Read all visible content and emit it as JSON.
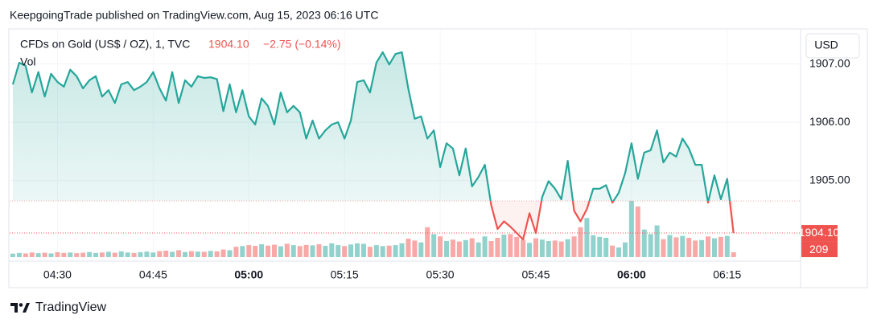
{
  "header": {
    "title": "KeepgoingTrade published on TradingView.com, Aug 15, 2023 06:16 UTC"
  },
  "footer": {
    "brand": "TradingView"
  },
  "chart_data": {
    "type": "line",
    "change": "−2.75 (−0.14%)",
    "currency": "USD",
    "x": [
      263,
      264,
      265,
      266,
      267,
      268,
      269,
      270,
      271,
      272,
      273,
      274,
      275,
      276,
      277,
      278,
      279,
      280,
      281,
      282,
      283,
      284,
      285,
      286,
      287,
      288,
      289,
      290,
      291,
      292,
      293,
      294,
      295,
      296,
      297,
      298,
      299,
      300,
      301,
      302,
      303,
      304,
      305,
      306,
      307,
      308,
      309,
      310,
      311,
      312,
      313,
      314,
      315,
      316,
      317,
      318,
      319,
      320,
      321,
      322,
      323,
      324,
      325,
      326,
      327,
      328,
      329,
      330,
      331,
      332,
      333,
      334,
      335,
      336,
      337,
      338,
      339,
      340,
      341,
      342,
      343,
      344,
      345,
      346,
      347,
      348,
      349,
      350,
      351,
      352,
      353,
      354,
      355,
      356,
      357,
      358,
      359,
      360,
      361,
      362,
      363,
      364,
      365,
      366,
      367,
      368,
      369,
      370,
      371,
      372,
      373,
      374,
      375,
      376
    ],
    "xlim": [
      262.5,
      386
    ],
    "xticks": [
      {
        "value": 270,
        "label": "04:30"
      },
      {
        "value": 285,
        "label": "04:45"
      },
      {
        "value": 300,
        "label": "05:00",
        "bold": true
      },
      {
        "value": 315,
        "label": "05:15"
      },
      {
        "value": 330,
        "label": "05:30"
      },
      {
        "value": 345,
        "label": "05:45"
      },
      {
        "value": 360,
        "label": "06:00",
        "bold": true
      },
      {
        "value": 375,
        "label": "06:15"
      }
    ],
    "ylim": [
      1903.66,
      1907.6
    ],
    "yticks": [
      {
        "value": 1905,
        "label": "1905.00"
      },
      {
        "value": 1906,
        "label": "1906.00"
      },
      {
        "value": 1907,
        "label": "1907.00"
      }
    ],
    "baseline": 1904.65,
    "series": [
      {
        "name": "CFDs on Gold (US$ / OZ), 1, TVC",
        "last_label": "1904.10",
        "color": "#26a69a",
        "down_color": "#ef5350",
        "values": [
          1906.65,
          1907.02,
          1906.97,
          1906.51,
          1906.86,
          1906.44,
          1906.83,
          1906.69,
          1906.61,
          1906.9,
          1906.79,
          1906.58,
          1906.72,
          1906.79,
          1906.44,
          1906.55,
          1906.33,
          1906.65,
          1906.69,
          1906.55,
          1906.61,
          1906.69,
          1906.86,
          1906.58,
          1906.37,
          1906.86,
          1906.33,
          1906.72,
          1906.61,
          1906.79,
          1906.76,
          1906.77,
          1906.74,
          1906.19,
          1906.65,
          1906.17,
          1906.55,
          1906.1,
          1905.96,
          1906.41,
          1906.28,
          1905.96,
          1906.51,
          1906.17,
          1906.28,
          1906.17,
          1905.72,
          1906.03,
          1905.72,
          1905.86,
          1905.96,
          1906.0,
          1905.72,
          1906.03,
          1906.69,
          1906.72,
          1906.51,
          1907.02,
          1907.2,
          1906.99,
          1907.17,
          1907.2,
          1906.58,
          1906.06,
          1906.1,
          1905.72,
          1905.86,
          1905.23,
          1905.64,
          1905.55,
          1905.09,
          1905.55,
          1904.9,
          1905.06,
          1905.27,
          1904.58,
          1904.17,
          1904.3,
          1904.21,
          1904.1,
          1903.99,
          1904.44,
          1904.1,
          1904.72,
          1904.99,
          1904.86,
          1904.68,
          1905.34,
          1904.48,
          1904.3,
          1904.51,
          1904.86,
          1904.86,
          1904.92,
          1904.62,
          1904.79,
          1905.13,
          1905.64,
          1905.03,
          1905.48,
          1905.52,
          1905.86,
          1905.31,
          1905.48,
          1905.41,
          1905.72,
          1905.55,
          1905.27,
          1905.27,
          1904.62,
          1905.09,
          1904.68,
          1905.03,
          1904.1
        ]
      },
      {
        "name": "Vol",
        "type": "bar",
        "up_color": "#92d2cc",
        "down_color": "#f7a9a7",
        "values": [
          150,
          180,
          160,
          200,
          170,
          190,
          160,
          210,
          180,
          200,
          170,
          190,
          220,
          180,
          200,
          230,
          190,
          250,
          200,
          180,
          210,
          240,
          200,
          260,
          280,
          230,
          300,
          220,
          260,
          240,
          230,
          270,
          250,
          330,
          300,
          450,
          480,
          520,
          490,
          560,
          500,
          540,
          470,
          580,
          520,
          480,
          530,
          510,
          560,
          490,
          600,
          520,
          480,
          550,
          600,
          580,
          450,
          520,
          480,
          500,
          520,
          600,
          800,
          720,
          640,
          1300,
          1000,
          900,
          700,
          760,
          680,
          740,
          820,
          640,
          900,
          700,
          840,
          980,
          1000,
          880,
          760,
          620,
          820,
          760,
          700,
          720,
          680,
          780,
          900,
          1300,
          1700,
          950,
          880,
          840,
          500,
          420,
          640,
          2450,
          2200,
          1200,
          1000,
          1380,
          780,
          960,
          860,
          920,
          840,
          720,
          740,
          900,
          820,
          880,
          920,
          209
        ]
      }
    ]
  }
}
